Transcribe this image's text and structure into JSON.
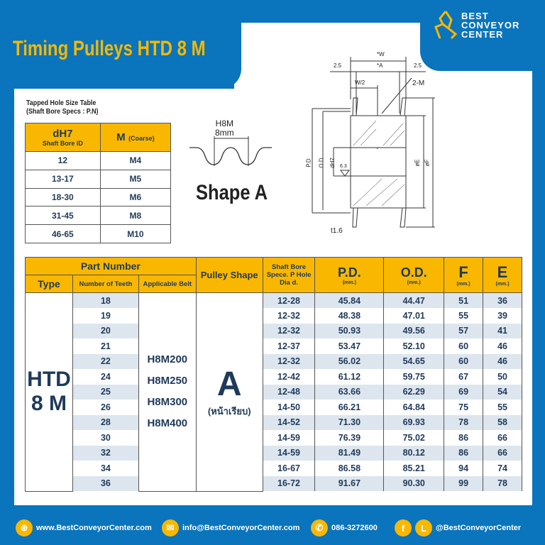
{
  "header": {
    "title": "Timing Pulleys HTD 8 M",
    "logo": [
      "BEST",
      "CONVEYOR",
      "CENTER"
    ]
  },
  "tapped": {
    "caption1": "Tapped Hole Size Table",
    "caption2": "(Shaft Bore Specs : P.N)",
    "h1": "dH7",
    "h1sub": "Shaft Bore ID",
    "h2": "M",
    "h2sub": "(Coarse)",
    "rows": [
      [
        "12",
        "M4"
      ],
      [
        "13-17",
        "M5"
      ],
      [
        "18-30",
        "M6"
      ],
      [
        "31-45",
        "M8"
      ],
      [
        "46-65",
        "M10"
      ]
    ]
  },
  "shape": {
    "belt": "H8M",
    "pitch": "8mm",
    "label": "Shape A"
  },
  "drawing": {
    "w": "*W",
    "a": "*A",
    "left": "2.5",
    "right": "2.5",
    "w2": "W/2",
    "m": "2-M",
    "pd": "P.D",
    "od": "O.D",
    "dh7": "dH7",
    "rough": "6.3",
    "e": "øE",
    "f": "øF",
    "t": "t1.6"
  },
  "table": {
    "h_part": "Part Number",
    "h_type": "Type",
    "h_teeth": "Number of Teeth",
    "h_belt": "Applicable Belt",
    "h_shape": "Pulley Shape",
    "h_shaft": "Shaft Bore Spece. P Hole Dia d.",
    "h_pd": "P.D.",
    "h_od": "O.D.",
    "h_f": "F",
    "h_e": "E",
    "unit": "(mm.)",
    "type": "HTD 8 M",
    "belts": [
      "H8M200",
      "H8M250",
      "H8M300",
      "H8M400"
    ],
    "shape": "A",
    "shape_sub": "(หน้าเรียบ)",
    "rows": [
      [
        "18",
        "12-28",
        "45.84",
        "44.47",
        "51",
        "36"
      ],
      [
        "19",
        "12-32",
        "48.38",
        "47.01",
        "55",
        "39"
      ],
      [
        "20",
        "12-32",
        "50.93",
        "49.56",
        "57",
        "41"
      ],
      [
        "21",
        "12-37",
        "53.47",
        "52.10",
        "60",
        "46"
      ],
      [
        "22",
        "12-32",
        "56.02",
        "54.65",
        "60",
        "46"
      ],
      [
        "24",
        "12-42",
        "61.12",
        "59.75",
        "67",
        "50"
      ],
      [
        "25",
        "12-48",
        "63.66",
        "62.29",
        "69",
        "54"
      ],
      [
        "26",
        "14-50",
        "66.21",
        "64.84",
        "75",
        "55"
      ],
      [
        "28",
        "14-52",
        "71.30",
        "69.93",
        "78",
        "58"
      ],
      [
        "30",
        "14-59",
        "76.39",
        "75.02",
        "86",
        "66"
      ],
      [
        "32",
        "14-59",
        "81.49",
        "80.12",
        "86",
        "66"
      ],
      [
        "34",
        "16-67",
        "86.58",
        "85.21",
        "94",
        "74"
      ],
      [
        "36",
        "16-72",
        "91.67",
        "90.30",
        "99",
        "78"
      ]
    ]
  },
  "footer": {
    "web": "www.BestConveyorCenter.com",
    "email": "info@BestConveyorCenter.com",
    "phone": "086-3272600",
    "social": "@BestConveyorCenter"
  },
  "colors": {
    "blue": "#0a74bc",
    "yellow": "#f9b700",
    "row": "#dde6ee",
    "text": "#1f3a5a"
  }
}
